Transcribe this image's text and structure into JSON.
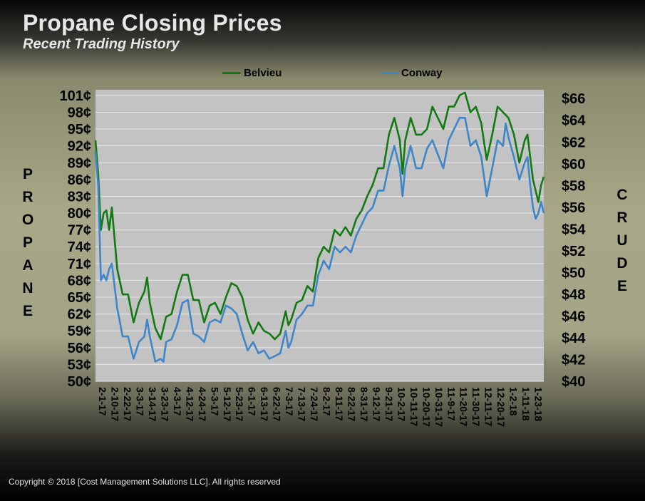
{
  "page": {
    "title": "Propane Closing Prices",
    "subtitle": "Recent Trading History",
    "left_label_letters": [
      "P",
      "R",
      "O",
      "P",
      "A",
      "N",
      "E"
    ],
    "right_label_letters": [
      "C",
      "R",
      "U",
      "D",
      "E"
    ],
    "copyright": "Copyright  © 2018  [Cost Management  Solutions LLC].   All rights  reserved"
  },
  "chart_data": {
    "type": "line",
    "title": "Propane Closing Prices",
    "subtitle": "Recent Trading History",
    "legend_position": "top-center",
    "grid": "horizontal",
    "plot_background": "#c3c3c3",
    "left_axis": {
      "label": "PROPANE",
      "range": [
        50,
        102
      ],
      "ticks": [
        50,
        53,
        56,
        59,
        62,
        65,
        68,
        71,
        74,
        77,
        80,
        83,
        86,
        89,
        92,
        95,
        98,
        101
      ],
      "tick_labels": [
        "50¢",
        "53¢",
        "56¢",
        "59¢",
        "62¢",
        "65¢",
        "68¢",
        "71¢",
        "74¢",
        "77¢",
        "80¢",
        "83¢",
        "86¢",
        "89¢",
        "92¢",
        "95¢",
        "98¢",
        "101¢"
      ]
    },
    "right_axis": {
      "label": "CRUDE",
      "range": [
        40,
        66.8
      ],
      "tick_labels": [
        "$40",
        "$42",
        "$44",
        "$46",
        "$48",
        "$50",
        "$52",
        "$54",
        "$56",
        "$58",
        "$60",
        "$62",
        "$64",
        "$66"
      ]
    },
    "x_tick_labels": [
      "2-1-17",
      "2-10-17",
      "2-22-17",
      "3-3-17",
      "3-14-17",
      "3-23-17",
      "4-3-17",
      "4-12-17",
      "4-24-17",
      "5-3-17",
      "5-12-17",
      "5-23-17",
      "6-1-17",
      "6-13-17",
      "6-22-17",
      "7-3-17",
      "7-13-17",
      "7-24-17",
      "8-2-17",
      "8-11-17",
      "8-22-17",
      "8-31-17",
      "9-12-17",
      "9-21-17",
      "10-2-17",
      "10-11-17",
      "10-20-17",
      "10-31-17",
      "11-9-17",
      "11-20-17",
      "11-30-17",
      "12-11-17",
      "12-20-17",
      "1-2-18",
      "1-11-18",
      "1-23-18"
    ],
    "series": [
      {
        "name": "Belvieu",
        "color": "#137a13",
        "points": [
          [
            0,
            93
          ],
          [
            1,
            87
          ],
          [
            2,
            77
          ],
          [
            3,
            80
          ],
          [
            4,
            80.5
          ],
          [
            5,
            77
          ],
          [
            6,
            81
          ],
          [
            8,
            70
          ],
          [
            10,
            65.5
          ],
          [
            12,
            65.5
          ],
          [
            14,
            60.5
          ],
          [
            16,
            64
          ],
          [
            18,
            66
          ],
          [
            19,
            68.5
          ],
          [
            20,
            64
          ],
          [
            22,
            59.5
          ],
          [
            24,
            57.5
          ],
          [
            26,
            61.5
          ],
          [
            28,
            62
          ],
          [
            30,
            66
          ],
          [
            32,
            69
          ],
          [
            34,
            69
          ],
          [
            36,
            64.5
          ],
          [
            38,
            64.5
          ],
          [
            40,
            60.5
          ],
          [
            42,
            63.5
          ],
          [
            44,
            64
          ],
          [
            46,
            62
          ],
          [
            48,
            65
          ],
          [
            50,
            67.5
          ],
          [
            52,
            67
          ],
          [
            54,
            65
          ],
          [
            56,
            61
          ],
          [
            58,
            58.5
          ],
          [
            60,
            60.5
          ],
          [
            62,
            59
          ],
          [
            64,
            58.5
          ],
          [
            66,
            57.5
          ],
          [
            68,
            58.5
          ],
          [
            70,
            62.5
          ],
          [
            71,
            60
          ],
          [
            72,
            61
          ],
          [
            74,
            64
          ],
          [
            76,
            64.5
          ],
          [
            78,
            67
          ],
          [
            80,
            66
          ],
          [
            82,
            72
          ],
          [
            84,
            74
          ],
          [
            86,
            73
          ],
          [
            88,
            77
          ],
          [
            90,
            76
          ],
          [
            92,
            77.5
          ],
          [
            94,
            76
          ],
          [
            96,
            79
          ],
          [
            98,
            80.5
          ],
          [
            100,
            83
          ],
          [
            102,
            85
          ],
          [
            104,
            88
          ],
          [
            106,
            88
          ],
          [
            108,
            94
          ],
          [
            110,
            97
          ],
          [
            112,
            93
          ],
          [
            113,
            87
          ],
          [
            114,
            93
          ],
          [
            116,
            97
          ],
          [
            118,
            94
          ],
          [
            120,
            94
          ],
          [
            122,
            95
          ],
          [
            124,
            99
          ],
          [
            126,
            97
          ],
          [
            128,
            95
          ],
          [
            130,
            99
          ],
          [
            132,
            99
          ],
          [
            134,
            101
          ],
          [
            136,
            101.5
          ],
          [
            138,
            98
          ],
          [
            140,
            99
          ],
          [
            142,
            96
          ],
          [
            144,
            89.5
          ],
          [
            146,
            94
          ],
          [
            148,
            99
          ],
          [
            150,
            98
          ],
          [
            152,
            97
          ],
          [
            154,
            94
          ],
          [
            156,
            89
          ],
          [
            158,
            93
          ],
          [
            159,
            94
          ],
          [
            160,
            90
          ],
          [
            161,
            86
          ],
          [
            162,
            84
          ],
          [
            163,
            82
          ],
          [
            164,
            85
          ],
          [
            165,
            86.5
          ]
        ]
      },
      {
        "name": "Conway",
        "color": "#3f86c8",
        "points": [
          [
            0,
            91
          ],
          [
            1,
            85
          ],
          [
            2,
            68
          ],
          [
            3,
            69
          ],
          [
            4,
            68
          ],
          [
            5,
            70
          ],
          [
            6,
            71
          ],
          [
            8,
            63
          ],
          [
            10,
            58
          ],
          [
            12,
            58
          ],
          [
            14,
            54
          ],
          [
            16,
            57
          ],
          [
            18,
            58
          ],
          [
            19,
            61
          ],
          [
            20,
            58
          ],
          [
            22,
            53.5
          ],
          [
            24,
            54
          ],
          [
            25,
            53.5
          ],
          [
            26,
            57
          ],
          [
            28,
            57.5
          ],
          [
            30,
            60
          ],
          [
            32,
            64
          ],
          [
            34,
            64.5
          ],
          [
            36,
            58.5
          ],
          [
            38,
            58
          ],
          [
            40,
            57
          ],
          [
            42,
            60.5
          ],
          [
            44,
            61
          ],
          [
            46,
            60.5
          ],
          [
            48,
            63.5
          ],
          [
            50,
            63
          ],
          [
            52,
            62
          ],
          [
            54,
            58.5
          ],
          [
            56,
            55.5
          ],
          [
            58,
            57
          ],
          [
            60,
            55
          ],
          [
            62,
            55.5
          ],
          [
            64,
            54
          ],
          [
            66,
            54.5
          ],
          [
            68,
            55
          ],
          [
            70,
            59
          ],
          [
            71,
            56
          ],
          [
            72,
            57
          ],
          [
            74,
            61
          ],
          [
            76,
            62
          ],
          [
            78,
            63.5
          ],
          [
            80,
            63.5
          ],
          [
            82,
            69
          ],
          [
            84,
            71.5
          ],
          [
            86,
            70
          ],
          [
            88,
            74
          ],
          [
            90,
            73
          ],
          [
            92,
            74
          ],
          [
            94,
            73
          ],
          [
            96,
            76
          ],
          [
            98,
            78
          ],
          [
            100,
            80
          ],
          [
            102,
            81
          ],
          [
            104,
            84
          ],
          [
            106,
            84
          ],
          [
            108,
            88.5
          ],
          [
            110,
            92
          ],
          [
            112,
            88
          ],
          [
            113,
            83
          ],
          [
            114,
            88
          ],
          [
            116,
            92
          ],
          [
            118,
            88
          ],
          [
            120,
            88
          ],
          [
            122,
            91.5
          ],
          [
            124,
            93
          ],
          [
            126,
            90.5
          ],
          [
            128,
            88
          ],
          [
            130,
            93
          ],
          [
            132,
            95
          ],
          [
            134,
            97
          ],
          [
            136,
            97
          ],
          [
            138,
            92
          ],
          [
            140,
            93
          ],
          [
            142,
            90
          ],
          [
            144,
            83
          ],
          [
            146,
            88
          ],
          [
            148,
            93
          ],
          [
            150,
            92
          ],
          [
            151,
            96
          ],
          [
            152,
            93.5
          ],
          [
            154,
            90
          ],
          [
            156,
            86
          ],
          [
            158,
            89
          ],
          [
            159,
            90
          ],
          [
            160,
            85
          ],
          [
            161,
            81
          ],
          [
            162,
            79
          ],
          [
            163,
            80
          ],
          [
            164,
            82
          ],
          [
            165,
            80
          ]
        ]
      }
    ]
  }
}
